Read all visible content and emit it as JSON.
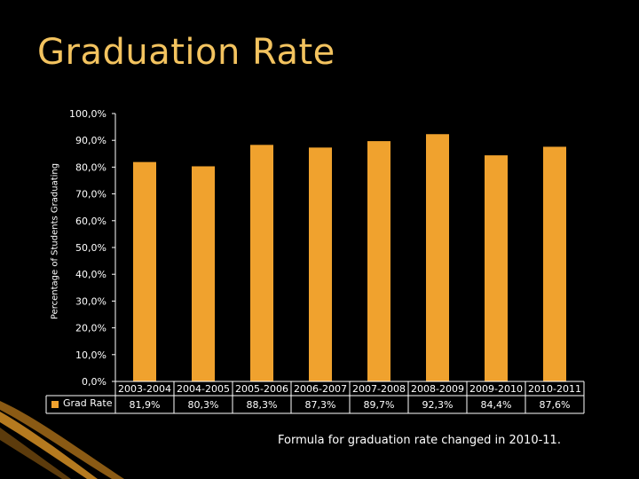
{
  "slide": {
    "title": "Graduation Rate",
    "footnote": "Formula for graduation rate changed in 2010-11."
  },
  "colors": {
    "bar": "#f0a22e",
    "title": "#f3c35f",
    "axis": "#ffffff",
    "background": "#000000"
  },
  "chart_data": {
    "type": "bar",
    "ylabel": "Percentage of Students Graduating",
    "ylim": [
      0,
      100
    ],
    "yticks": [
      "0,0%",
      "10,0%",
      "20,0%",
      "30,0%",
      "40,0%",
      "50,0%",
      "60,0%",
      "70,0%",
      "80,0%",
      "90,0%",
      "100,0%"
    ],
    "categories": [
      "2003-2004",
      "2004-2005",
      "2005-2006",
      "2006-2007",
      "2007-2008",
      "2008-2009",
      "2009-2010",
      "2010-2011"
    ],
    "series": [
      {
        "name": "Grad Rate",
        "values": [
          81.9,
          80.3,
          88.3,
          87.3,
          89.7,
          92.3,
          84.4,
          87.6
        ],
        "labels": [
          "81,9%",
          "80,3%",
          "88,3%",
          "87,3%",
          "89,7%",
          "92,3%",
          "84,4%",
          "87,6%"
        ]
      }
    ],
    "grid": false,
    "legend": "data-table"
  }
}
